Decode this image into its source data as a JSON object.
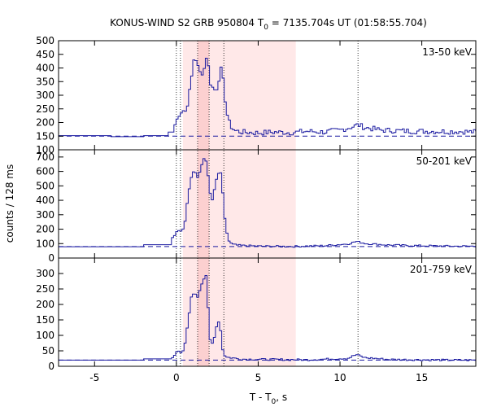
{
  "chart_data": {
    "type": "line",
    "title": {
      "prefix": "KONUS-WIND S2 GRB 950804 T",
      "sub": "0",
      "suffix": " = 7135.704s UT (01:58:55.704)"
    },
    "xlabel": {
      "prefix": "T - T",
      "sub": "0",
      "suffix": ", s"
    },
    "ylabel": "counts / 128 ms",
    "xlim": [
      -7.2,
      18.3
    ],
    "xticks": [
      -5,
      0,
      5,
      10,
      15
    ],
    "bin_width": 0.128,
    "shaded_interval": [
      0.4,
      7.3
    ],
    "shaded_interval_dark": [
      1.3,
      2.0
    ],
    "vertical_markers": [
      0.0,
      0.25,
      1.3,
      2.0,
      2.9,
      11.1
    ],
    "colors": {
      "series": "#1a1aa0",
      "shade": "#ffe8e8",
      "shade_dark": "#fcd0d0",
      "axis": "#000000"
    },
    "panels": [
      {
        "name": "13-50 keV",
        "ylim": [
          100,
          500
        ],
        "yticks": [
          100,
          150,
          200,
          250,
          300,
          350,
          400,
          450,
          500
        ],
        "background": 150,
        "pre_segments": [
          {
            "x0": -7.2,
            "x1": -4.0,
            "y": 152
          },
          {
            "x0": -4.0,
            "x1": -2.0,
            "y": 148
          },
          {
            "x0": -2.0,
            "x1": -0.5,
            "y": 152
          },
          {
            "x0": -0.5,
            "x1": -0.15,
            "y": 165
          }
        ],
        "points": [
          [
            -0.1,
            190
          ],
          [
            0.2,
            235
          ],
          [
            0.4,
            245
          ],
          [
            0.6,
            240
          ],
          [
            0.8,
            310
          ],
          [
            1.0,
            395
          ],
          [
            1.1,
            450
          ],
          [
            1.25,
            420
          ],
          [
            1.4,
            385
          ],
          [
            1.55,
            380
          ],
          [
            1.7,
            395
          ],
          [
            1.8,
            450
          ],
          [
            1.95,
            410
          ],
          [
            2.1,
            340
          ],
          [
            2.3,
            320
          ],
          [
            2.45,
            320
          ],
          [
            2.6,
            360
          ],
          [
            2.75,
            400
          ],
          [
            2.9,
            335
          ],
          [
            3.05,
            245
          ],
          [
            3.2,
            205
          ],
          [
            3.4,
            180
          ],
          [
            3.6,
            170
          ],
          [
            4.0,
            165
          ],
          [
            5.0,
            162
          ],
          [
            6.0,
            165
          ],
          [
            7.0,
            163
          ],
          [
            8.0,
            168
          ],
          [
            9.0,
            165
          ],
          [
            10.0,
            172
          ],
          [
            10.8,
            185
          ],
          [
            11.1,
            192
          ],
          [
            11.5,
            182
          ],
          [
            12.5,
            172
          ],
          [
            13.5,
            170
          ],
          [
            14.5,
            168
          ],
          [
            15.5,
            168
          ],
          [
            16.5,
            167
          ],
          [
            17.5,
            167
          ],
          [
            18.3,
            165
          ]
        ],
        "noise": 10
      },
      {
        "name": "50-201 keV",
        "ylim": [
          0,
          750
        ],
        "yticks": [
          0,
          100,
          200,
          300,
          400,
          500,
          600,
          700
        ],
        "background": 80,
        "pre_segments": [
          {
            "x0": -7.2,
            "x1": -2.0,
            "y": 78
          },
          {
            "x0": -2.0,
            "x1": -0.3,
            "y": 92
          }
        ],
        "points": [
          [
            -0.2,
            140
          ],
          [
            0.1,
            200
          ],
          [
            0.3,
            180
          ],
          [
            0.5,
            230
          ],
          [
            0.7,
            420
          ],
          [
            0.9,
            560
          ],
          [
            1.1,
            610
          ],
          [
            1.3,
            560
          ],
          [
            1.45,
            600
          ],
          [
            1.6,
            660
          ],
          [
            1.75,
            710
          ],
          [
            1.9,
            620
          ],
          [
            2.05,
            450
          ],
          [
            2.2,
            400
          ],
          [
            2.4,
            520
          ],
          [
            2.55,
            580
          ],
          [
            2.7,
            600
          ],
          [
            2.85,
            430
          ],
          [
            3.0,
            220
          ],
          [
            3.2,
            120
          ],
          [
            3.4,
            95
          ],
          [
            3.8,
            88
          ],
          [
            5.0,
            82
          ],
          [
            7.0,
            80
          ],
          [
            9.0,
            85
          ],
          [
            10.5,
            98
          ],
          [
            11.0,
            115
          ],
          [
            11.6,
            100
          ],
          [
            13.0,
            90
          ],
          [
            15.0,
            85
          ],
          [
            17.0,
            82
          ],
          [
            18.3,
            82
          ]
        ],
        "noise": 6
      },
      {
        "name": "201-759 keV",
        "ylim": [
          0,
          350
        ],
        "yticks": [
          0,
          50,
          100,
          150,
          200,
          250,
          300
        ],
        "background": 20,
        "pre_segments": [
          {
            "x0": -7.2,
            "x1": -2.0,
            "y": 20
          },
          {
            "x0": -2.0,
            "x1": -0.3,
            "y": 24
          }
        ],
        "points": [
          [
            -0.2,
            30
          ],
          [
            0.1,
            50
          ],
          [
            0.3,
            40
          ],
          [
            0.5,
            60
          ],
          [
            0.7,
            140
          ],
          [
            0.9,
            220
          ],
          [
            1.1,
            240
          ],
          [
            1.3,
            225
          ],
          [
            1.5,
            260
          ],
          [
            1.7,
            285
          ],
          [
            1.8,
            300
          ],
          [
            1.95,
            180
          ],
          [
            2.1,
            60
          ],
          [
            2.3,
            90
          ],
          [
            2.5,
            140
          ],
          [
            2.65,
            150
          ],
          [
            2.8,
            60
          ],
          [
            3.0,
            30
          ],
          [
            4.0,
            23
          ],
          [
            6.0,
            22
          ],
          [
            8.0,
            21
          ],
          [
            10.5,
            26
          ],
          [
            11.0,
            38
          ],
          [
            11.5,
            28
          ],
          [
            13.0,
            22
          ],
          [
            15.0,
            21
          ],
          [
            17.0,
            20
          ],
          [
            18.3,
            20
          ]
        ],
        "noise": 3
      }
    ]
  }
}
